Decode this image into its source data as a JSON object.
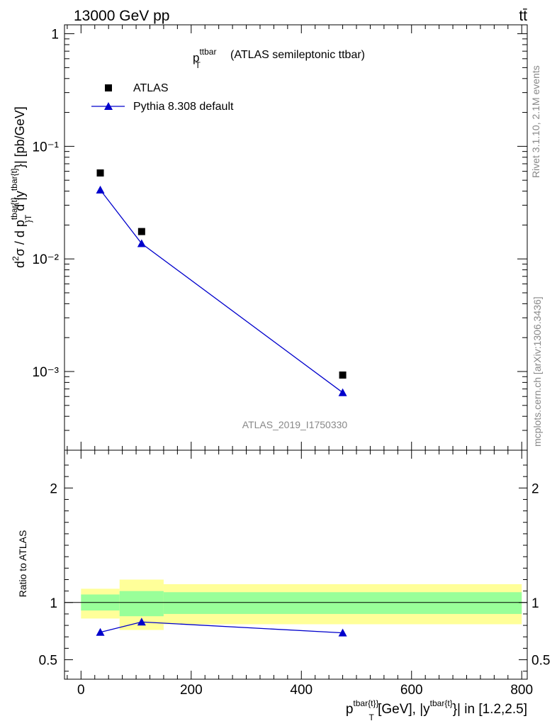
{
  "header": {
    "left": "13000 GeV pp",
    "right": "tt̄"
  },
  "title": {
    "main": "p",
    "sup": "ttbar",
    "sub": "T",
    "rest": "(ATLAS semileptonic ttbar)"
  },
  "legend": [
    {
      "label": "ATLAS",
      "marker": "square",
      "color": "#000000"
    },
    {
      "label": "Pythia 8.308 default",
      "marker": "triangle",
      "color": "#0000cc"
    }
  ],
  "watermark": "ATLAS_2019_I1750330",
  "side_texts": {
    "rivet": "Rivet 3.1.10,  2.1M events",
    "mcplots": "mcplots.cern.ch [arXiv:1306.3436]"
  },
  "ylabel_upper": "d²σ / d p^{tbar{t}}_T d |y^{tbar{t}}| [pb/GeV]",
  "ylabel_lower": "Ratio to ATLAS",
  "xlabel": "p^{tbar{t}}_T [GeV], |y^{tbar{t}}| in [1.2,2.5]",
  "upper_tick_labels": [
    "1",
    "10⁻¹",
    "10⁻²",
    "10⁻³"
  ],
  "chart_data": [
    {
      "type": "scatter",
      "panel": "main",
      "xlim": [
        -30,
        810
      ],
      "ylim": [
        0.0002,
        1.2
      ],
      "yscale": "log",
      "series": [
        {
          "name": "ATLAS",
          "x": [
            35,
            110,
            475
          ],
          "y": [
            0.058,
            0.0175,
            0.00093
          ]
        },
        {
          "name": "Pythia 8.308 default",
          "x": [
            35,
            110,
            475
          ],
          "y": [
            0.041,
            0.0137,
            0.00065
          ]
        }
      ]
    },
    {
      "type": "line",
      "panel": "ratio",
      "xlim": [
        -30,
        810
      ],
      "ylim": [
        0.33,
        2.33
      ],
      "xticks": [
        0,
        200,
        400,
        600,
        800
      ],
      "yticks": [
        0.5,
        1,
        2
      ],
      "bands": [
        {
          "x0": 0,
          "x1": 70,
          "stat_lo": 0.93,
          "stat_hi": 1.07,
          "tot_lo": 0.86,
          "tot_hi": 1.12
        },
        {
          "x0": 70,
          "x1": 150,
          "stat_lo": 0.88,
          "stat_hi": 1.1,
          "tot_lo": 0.76,
          "tot_hi": 1.2
        },
        {
          "x0": 150,
          "x1": 800,
          "stat_lo": 0.9,
          "stat_hi": 1.09,
          "tot_lo": 0.81,
          "tot_hi": 1.16
        }
      ],
      "series": [
        {
          "name": "Pythia 8.308 default",
          "x": [
            35,
            110,
            475
          ],
          "y": [
            0.74,
            0.83,
            0.735
          ]
        }
      ]
    }
  ],
  "colors": {
    "band_total": "#ffff99",
    "band_stat": "#99ff99",
    "mc": "#0000cc",
    "data": "#000000"
  }
}
